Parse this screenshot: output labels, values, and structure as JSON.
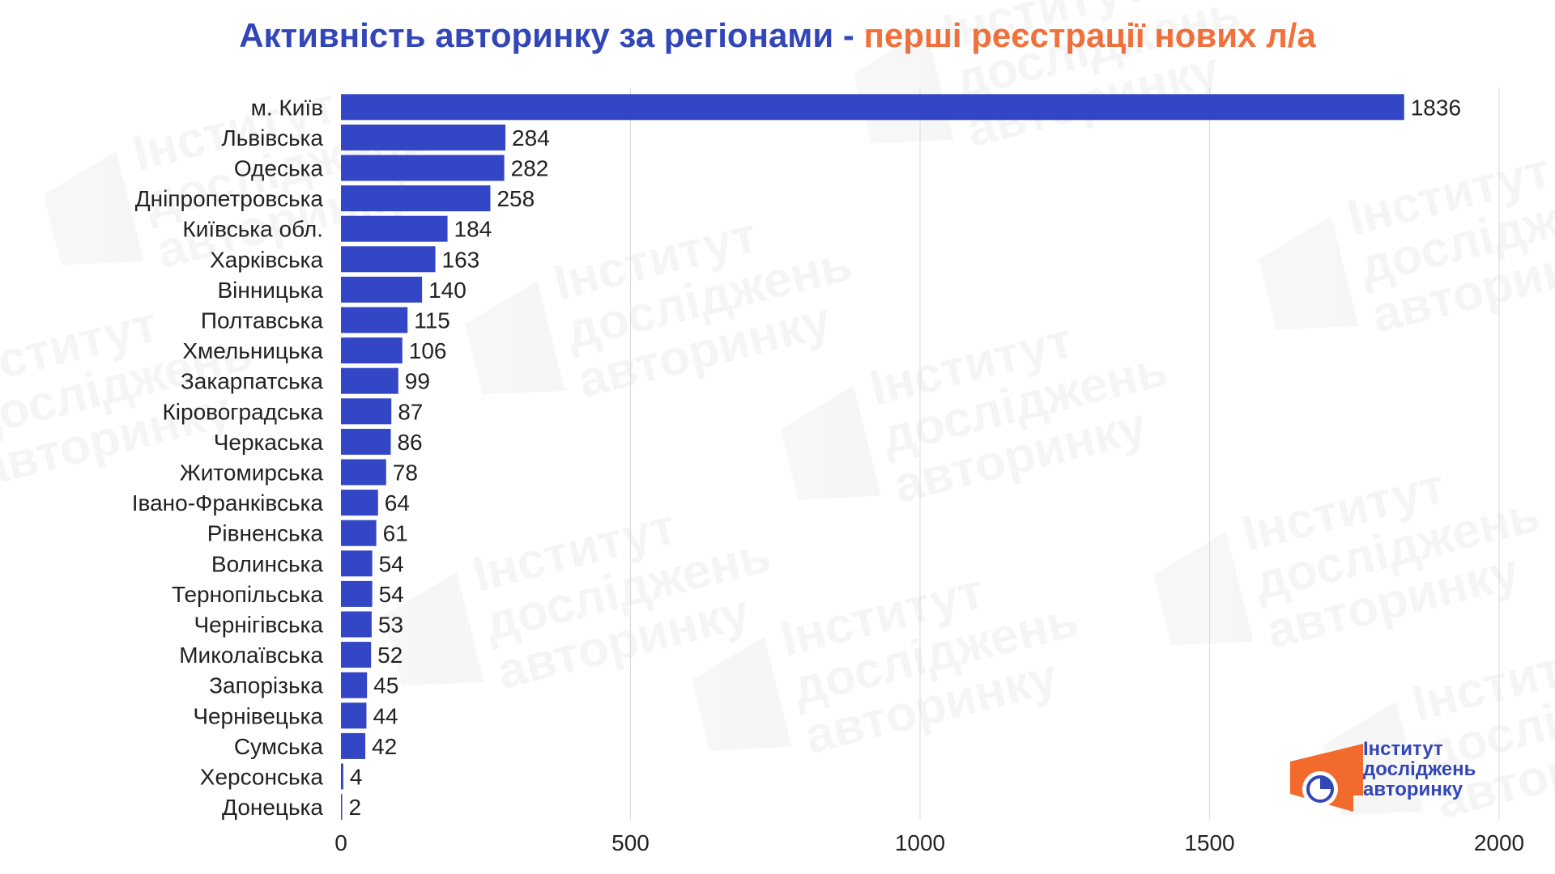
{
  "title": {
    "part1": "Активність авторинку за регіонами",
    "separator": " - ",
    "part2": "перші реєстрації нових л/а"
  },
  "colors": {
    "bar": "#3346c6",
    "title_main": "#3346b8",
    "title_accent": "#f2703a",
    "grid": "#d9d9d9",
    "logo_orange": "#f26a2c",
    "logo_blue": "#3346b8"
  },
  "watermark": {
    "lines": [
      "Інститут",
      "досліджень",
      "авторинку"
    ]
  },
  "logo": {
    "lines": [
      "Інститут",
      "досліджень",
      "авторинку"
    ],
    "icon": "pie-chart-icon"
  },
  "chart_data": {
    "type": "bar",
    "orientation": "horizontal",
    "categories": [
      "м. Київ",
      "Львівська",
      "Одеська",
      "Дніпропетровська",
      "Київська обл.",
      "Харківська",
      "Вінницька",
      "Полтавська",
      "Хмельницька",
      "Закарпатська",
      "Кіровоградська",
      "Черкаська",
      "Житомирська",
      "Івано-Франківська",
      "Рівненська",
      "Волинська",
      "Тернопільська",
      "Чернігівська",
      "Миколаївська",
      "Запорізька",
      "Чернівецька",
      "Сумська",
      "Херсонська",
      "Донецька"
    ],
    "values": [
      1836,
      284,
      282,
      258,
      184,
      163,
      140,
      115,
      106,
      99,
      87,
      86,
      78,
      64,
      61,
      54,
      54,
      53,
      52,
      45,
      44,
      42,
      4,
      2
    ],
    "xlim": [
      0,
      2000
    ],
    "xticks": [
      0,
      500,
      1000,
      1500,
      2000
    ],
    "grid": true,
    "data_labels": true
  }
}
